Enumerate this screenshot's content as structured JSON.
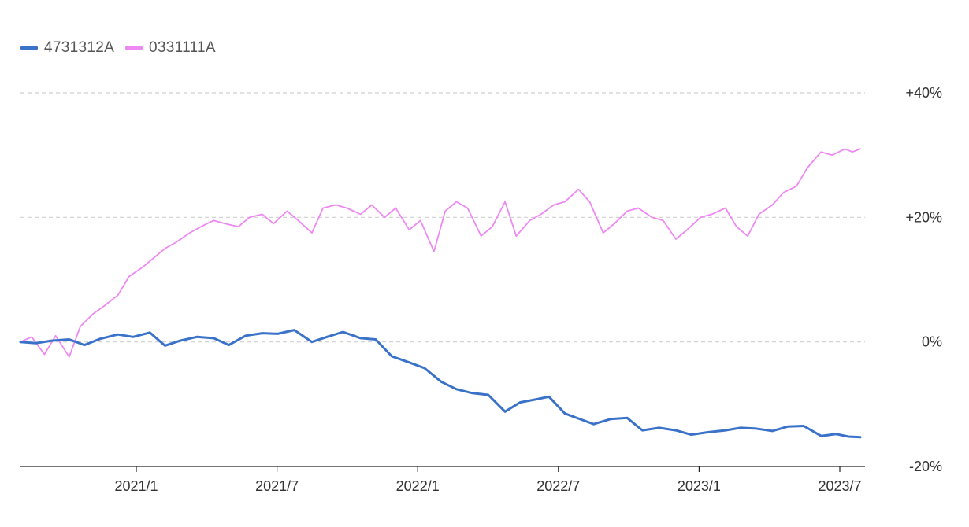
{
  "colors": {
    "series_a": "#3a72c9",
    "series_b": "#ee88f2",
    "grid": "#cfcfcf",
    "axis": "#222222"
  },
  "chart_data": {
    "type": "line",
    "legend_position": "top-left",
    "grid": true,
    "x_labels": [
      "2021/1",
      "2021/7",
      "2022/1",
      "2022/7",
      "2023/1",
      "2023/7"
    ],
    "y_ticks": [
      {
        "value": 40,
        "label": "+40%"
      },
      {
        "value": 20,
        "label": "+20%"
      },
      {
        "value": 0,
        "label": "0%"
      },
      {
        "value": -20,
        "label": "-20%"
      }
    ],
    "ylim": [
      -20,
      40
    ],
    "xlim": [
      "2020-09-01",
      "2023-07-20"
    ],
    "series": [
      {
        "name": "4731312A",
        "x": [
          "2020-09-01",
          "2020-09-20",
          "2020-10-10",
          "2020-11-01",
          "2020-11-20",
          "2020-12-10",
          "2021-01-01",
          "2021-01-20",
          "2021-02-10",
          "2021-03-01",
          "2021-03-20",
          "2021-04-10",
          "2021-05-01",
          "2021-05-20",
          "2021-06-10",
          "2021-07-01",
          "2021-07-20",
          "2021-08-10",
          "2021-09-01",
          "2021-09-20",
          "2021-10-10",
          "2021-11-01",
          "2021-11-20",
          "2021-12-10",
          "2022-01-01",
          "2022-01-20",
          "2022-02-10",
          "2022-03-01",
          "2022-03-20",
          "2022-04-10",
          "2022-05-01",
          "2022-05-20",
          "2022-06-10",
          "2022-06-25",
          "2022-07-15",
          "2022-08-05",
          "2022-08-20",
          "2022-09-10",
          "2022-10-01",
          "2022-10-20",
          "2022-11-10",
          "2022-12-01",
          "2022-12-20",
          "2023-01-10",
          "2023-02-01",
          "2023-02-20",
          "2023-03-10",
          "2023-04-01",
          "2023-04-20",
          "2023-05-10",
          "2023-06-01",
          "2023-06-20",
          "2023-07-05",
          "2023-07-20"
        ],
        "values": [
          0,
          -0.2,
          0.2,
          0.4,
          -0.5,
          0.5,
          1.2,
          0.8,
          1.5,
          -0.6,
          0.2,
          0.8,
          0.6,
          -0.5,
          1.0,
          1.4,
          1.3,
          1.9,
          0.0,
          0.8,
          1.6,
          0.6,
          0.4,
          -2.3,
          -3.3,
          -4.2,
          -6.4,
          -7.6,
          -8.2,
          -8.5,
          -11.2,
          -9.7,
          -9.2,
          -8.8,
          -11.5,
          -12.5,
          -13.2,
          -12.4,
          -12.2,
          -14.2,
          -13.8,
          -14.2,
          -14.9,
          -14.5,
          -14.2,
          -13.8,
          -13.9,
          -14.3,
          -13.6,
          -13.5,
          -15.1,
          -14.8,
          -15.2,
          -15.3
        ]
      },
      {
        "name": "0331111A",
        "x": [
          "2020-09-01",
          "2020-09-15",
          "2020-10-01",
          "2020-10-15",
          "2020-11-01",
          "2020-11-15",
          "2020-12-01",
          "2020-12-15",
          "2021-01-01",
          "2021-01-15",
          "2021-02-01",
          "2021-02-15",
          "2021-03-01",
          "2021-03-15",
          "2021-04-01",
          "2021-04-15",
          "2021-05-01",
          "2021-05-15",
          "2021-06-01",
          "2021-06-15",
          "2021-07-01",
          "2021-07-15",
          "2021-08-01",
          "2021-08-15",
          "2021-09-01",
          "2021-09-15",
          "2021-10-01",
          "2021-10-15",
          "2021-11-01",
          "2021-11-15",
          "2021-12-01",
          "2021-12-15",
          "2022-01-01",
          "2022-01-15",
          "2022-02-01",
          "2022-02-15",
          "2022-03-01",
          "2022-03-15",
          "2022-04-01",
          "2022-04-15",
          "2022-05-01",
          "2022-05-15",
          "2022-06-01",
          "2022-06-15",
          "2022-07-01",
          "2022-07-15",
          "2022-08-01",
          "2022-08-15",
          "2022-09-01",
          "2022-09-15",
          "2022-10-01",
          "2022-10-15",
          "2022-11-01",
          "2022-11-15",
          "2022-12-01",
          "2022-12-15",
          "2023-01-01",
          "2023-01-15",
          "2023-02-01",
          "2023-02-15",
          "2023-03-01",
          "2023-03-15",
          "2023-04-01",
          "2023-04-15",
          "2023-05-01",
          "2023-05-15",
          "2023-06-01",
          "2023-06-15",
          "2023-07-01",
          "2023-07-10",
          "2023-07-20"
        ],
        "values": [
          0,
          0.8,
          -2.0,
          1.0,
          -2.4,
          2.5,
          4.5,
          5.8,
          7.5,
          10.5,
          12.0,
          13.5,
          15.0,
          16.0,
          17.5,
          18.5,
          19.5,
          19.0,
          18.5,
          20.0,
          20.5,
          19.0,
          21.0,
          19.5,
          17.5,
          21.5,
          22.0,
          21.5,
          20.5,
          22.0,
          20.0,
          21.5,
          18.0,
          19.5,
          14.5,
          21.0,
          22.5,
          21.5,
          17.0,
          18.5,
          22.5,
          17.0,
          19.5,
          20.5,
          22.0,
          22.5,
          24.5,
          22.5,
          17.5,
          19.0,
          21.0,
          21.5,
          20.0,
          19.5,
          16.5,
          18.0,
          20.0,
          20.5,
          21.5,
          18.5,
          17.0,
          20.5,
          22.0,
          24.0,
          25.0,
          28.0,
          30.5,
          30.0,
          31.0,
          30.5,
          31.0
        ]
      }
    ]
  }
}
